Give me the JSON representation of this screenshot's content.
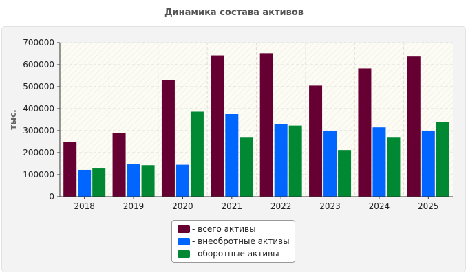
{
  "chart_data": {
    "type": "bar",
    "title": "Динамика состава активов",
    "xlabel": "",
    "ylabel": "тыс.",
    "categories": [
      "2018",
      "2019",
      "2020",
      "2021",
      "2022",
      "2023",
      "2024",
      "2025"
    ],
    "series": [
      {
        "name": "- всего активы",
        "color": "#660033",
        "values": [
          250000,
          290000,
          530000,
          642000,
          652000,
          505000,
          583000,
          637000
        ]
      },
      {
        "name": "- внеобротные активы",
        "color": "#0066ff",
        "values": [
          122000,
          147000,
          145000,
          375000,
          330000,
          297000,
          315000,
          300000
        ]
      },
      {
        "name": "- оборотные активы",
        "color": "#008833",
        "values": [
          128000,
          143000,
          386000,
          268000,
          323000,
          212000,
          268000,
          340000
        ]
      }
    ],
    "ylim": [
      0,
      700000
    ],
    "yticks": [
      "0",
      "100000",
      "200000",
      "300000",
      "400000",
      "500000",
      "600000",
      "700000"
    ],
    "grid": true,
    "legend_position": "bottom-center"
  }
}
